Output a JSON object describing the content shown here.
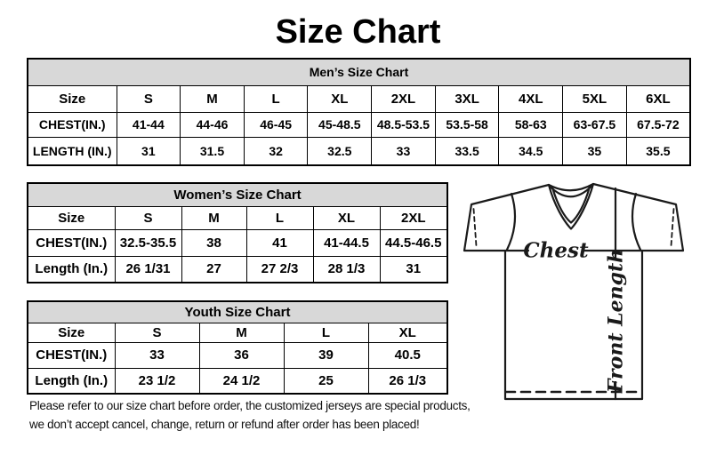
{
  "page": {
    "title": "Size Chart"
  },
  "colors": {
    "table_header_bg": "#d8d8d8",
    "border": "#000000",
    "text": "#000000",
    "background": "#ffffff"
  },
  "tables": {
    "men": {
      "title": "Men’s Size Chart",
      "rows": [
        [
          "Size",
          "S",
          "M",
          "L",
          "XL",
          "2XL",
          "3XL",
          "4XL",
          "5XL",
          "6XL"
        ],
        [
          "CHEST(IN.)",
          "41-44",
          "44-46",
          "46-45",
          "45-48.5",
          "48.5-53.5",
          "53.5-58",
          "58-63",
          "63-67.5",
          "67.5-72"
        ],
        [
          "LENGTH (IN.)",
          "31",
          "31.5",
          "32",
          "32.5",
          "33",
          "33.5",
          "34.5",
          "35",
          "35.5"
        ]
      ]
    },
    "women": {
      "title": "Women’s Size Chart",
      "rows": [
        [
          "Size",
          "S",
          "M",
          "L",
          "XL",
          "2XL"
        ],
        [
          "CHEST(IN.)",
          "32.5-35.5",
          "38",
          "41",
          "41-44.5",
          "44.5-46.5"
        ],
        [
          "Length (In.)",
          "26 1/31",
          "27",
          "27 2/3",
          "28 1/3",
          "31"
        ]
      ]
    },
    "youth": {
      "title": "Youth Size Chart",
      "rows": [
        [
          "Size",
          "S",
          "M",
          "L",
          "XL"
        ],
        [
          "CHEST(IN.)",
          "33",
          "36",
          "39",
          "40.5"
        ],
        [
          "Length (In.)",
          "23 1/2",
          "24 1/2",
          "25",
          "26 1/3"
        ]
      ]
    }
  },
  "diagram": {
    "chest_label": "Chest",
    "front_length_label": "Front Length"
  },
  "footer": {
    "line1": "Please refer to our size chart before order, the customized jerseys are special products,",
    "line2": "we don’t accept cancel, change, return or refund after order has been placed!"
  }
}
